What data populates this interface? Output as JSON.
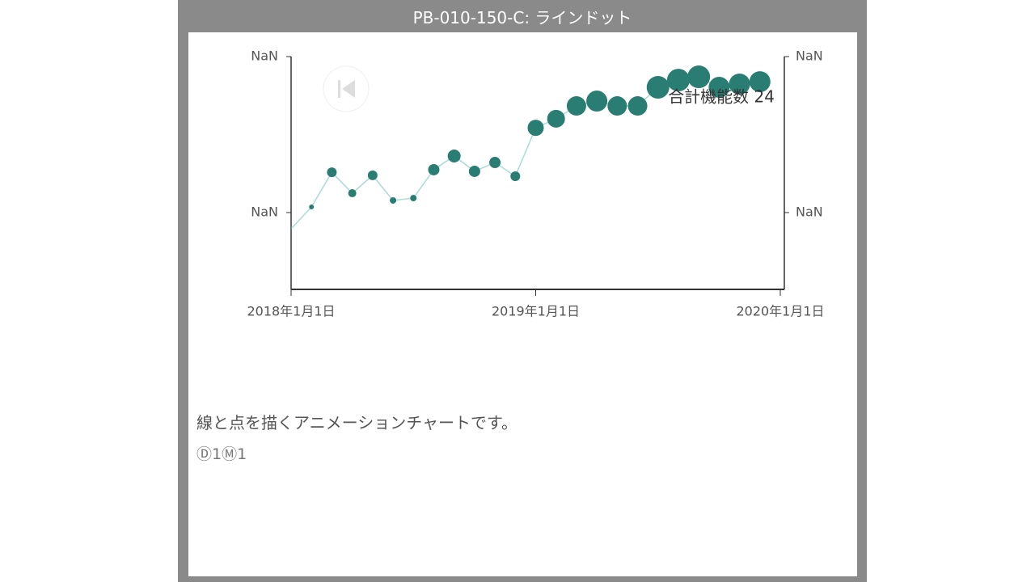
{
  "header": {
    "title": "PB-010-150-C: ラインドット"
  },
  "description": "線と点を描くアニメーションチャートです。",
  "counts": "Ⓓ1Ⓜ1",
  "chart_data": {
    "type": "line",
    "annotation": "合計機能数 24",
    "x": [
      0,
      1,
      2,
      3,
      4,
      5,
      6,
      7,
      8,
      9,
      10,
      11,
      12,
      13,
      14,
      15,
      16,
      17,
      18,
      19,
      20,
      21,
      22,
      23
    ],
    "xlim": [
      0,
      24
    ],
    "xticks": [
      {
        "value": 0,
        "label": "2018年1月1日"
      },
      {
        "value": 12,
        "label": "2019年1月1日"
      },
      {
        "value": 24,
        "label": "2020年1月1日"
      }
    ],
    "ylim": [
      0,
      100
    ],
    "yticks": [
      {
        "value": 33,
        "label": "NaN"
      },
      {
        "value": 100,
        "label": "NaN"
      }
    ],
    "y2lim": [
      0,
      100
    ],
    "y2ticks": [
      {
        "value": 33,
        "label": "NaN"
      },
      {
        "value": 100,
        "label": "NaN"
      }
    ],
    "series": [
      {
        "color": "#2a7d72",
        "line_color": "#a8dcd6",
        "values": [
          26.0,
          35.4,
          50.3,
          41.3,
          49.0,
          38.2,
          39.2,
          51.4,
          57.3,
          50.7,
          54.5,
          48.6,
          69.4,
          73.3,
          78.8,
          80.9,
          78.8,
          78.8,
          86.8,
          89.9,
          91.3,
          86.8,
          88.2,
          89.2
        ],
        "sizes": [
          1,
          3,
          6,
          5,
          6,
          4,
          4,
          7,
          8,
          7,
          7,
          6,
          10,
          11,
          12,
          13,
          12,
          12,
          14,
          14,
          14,
          13,
          13,
          13
        ]
      }
    ]
  }
}
